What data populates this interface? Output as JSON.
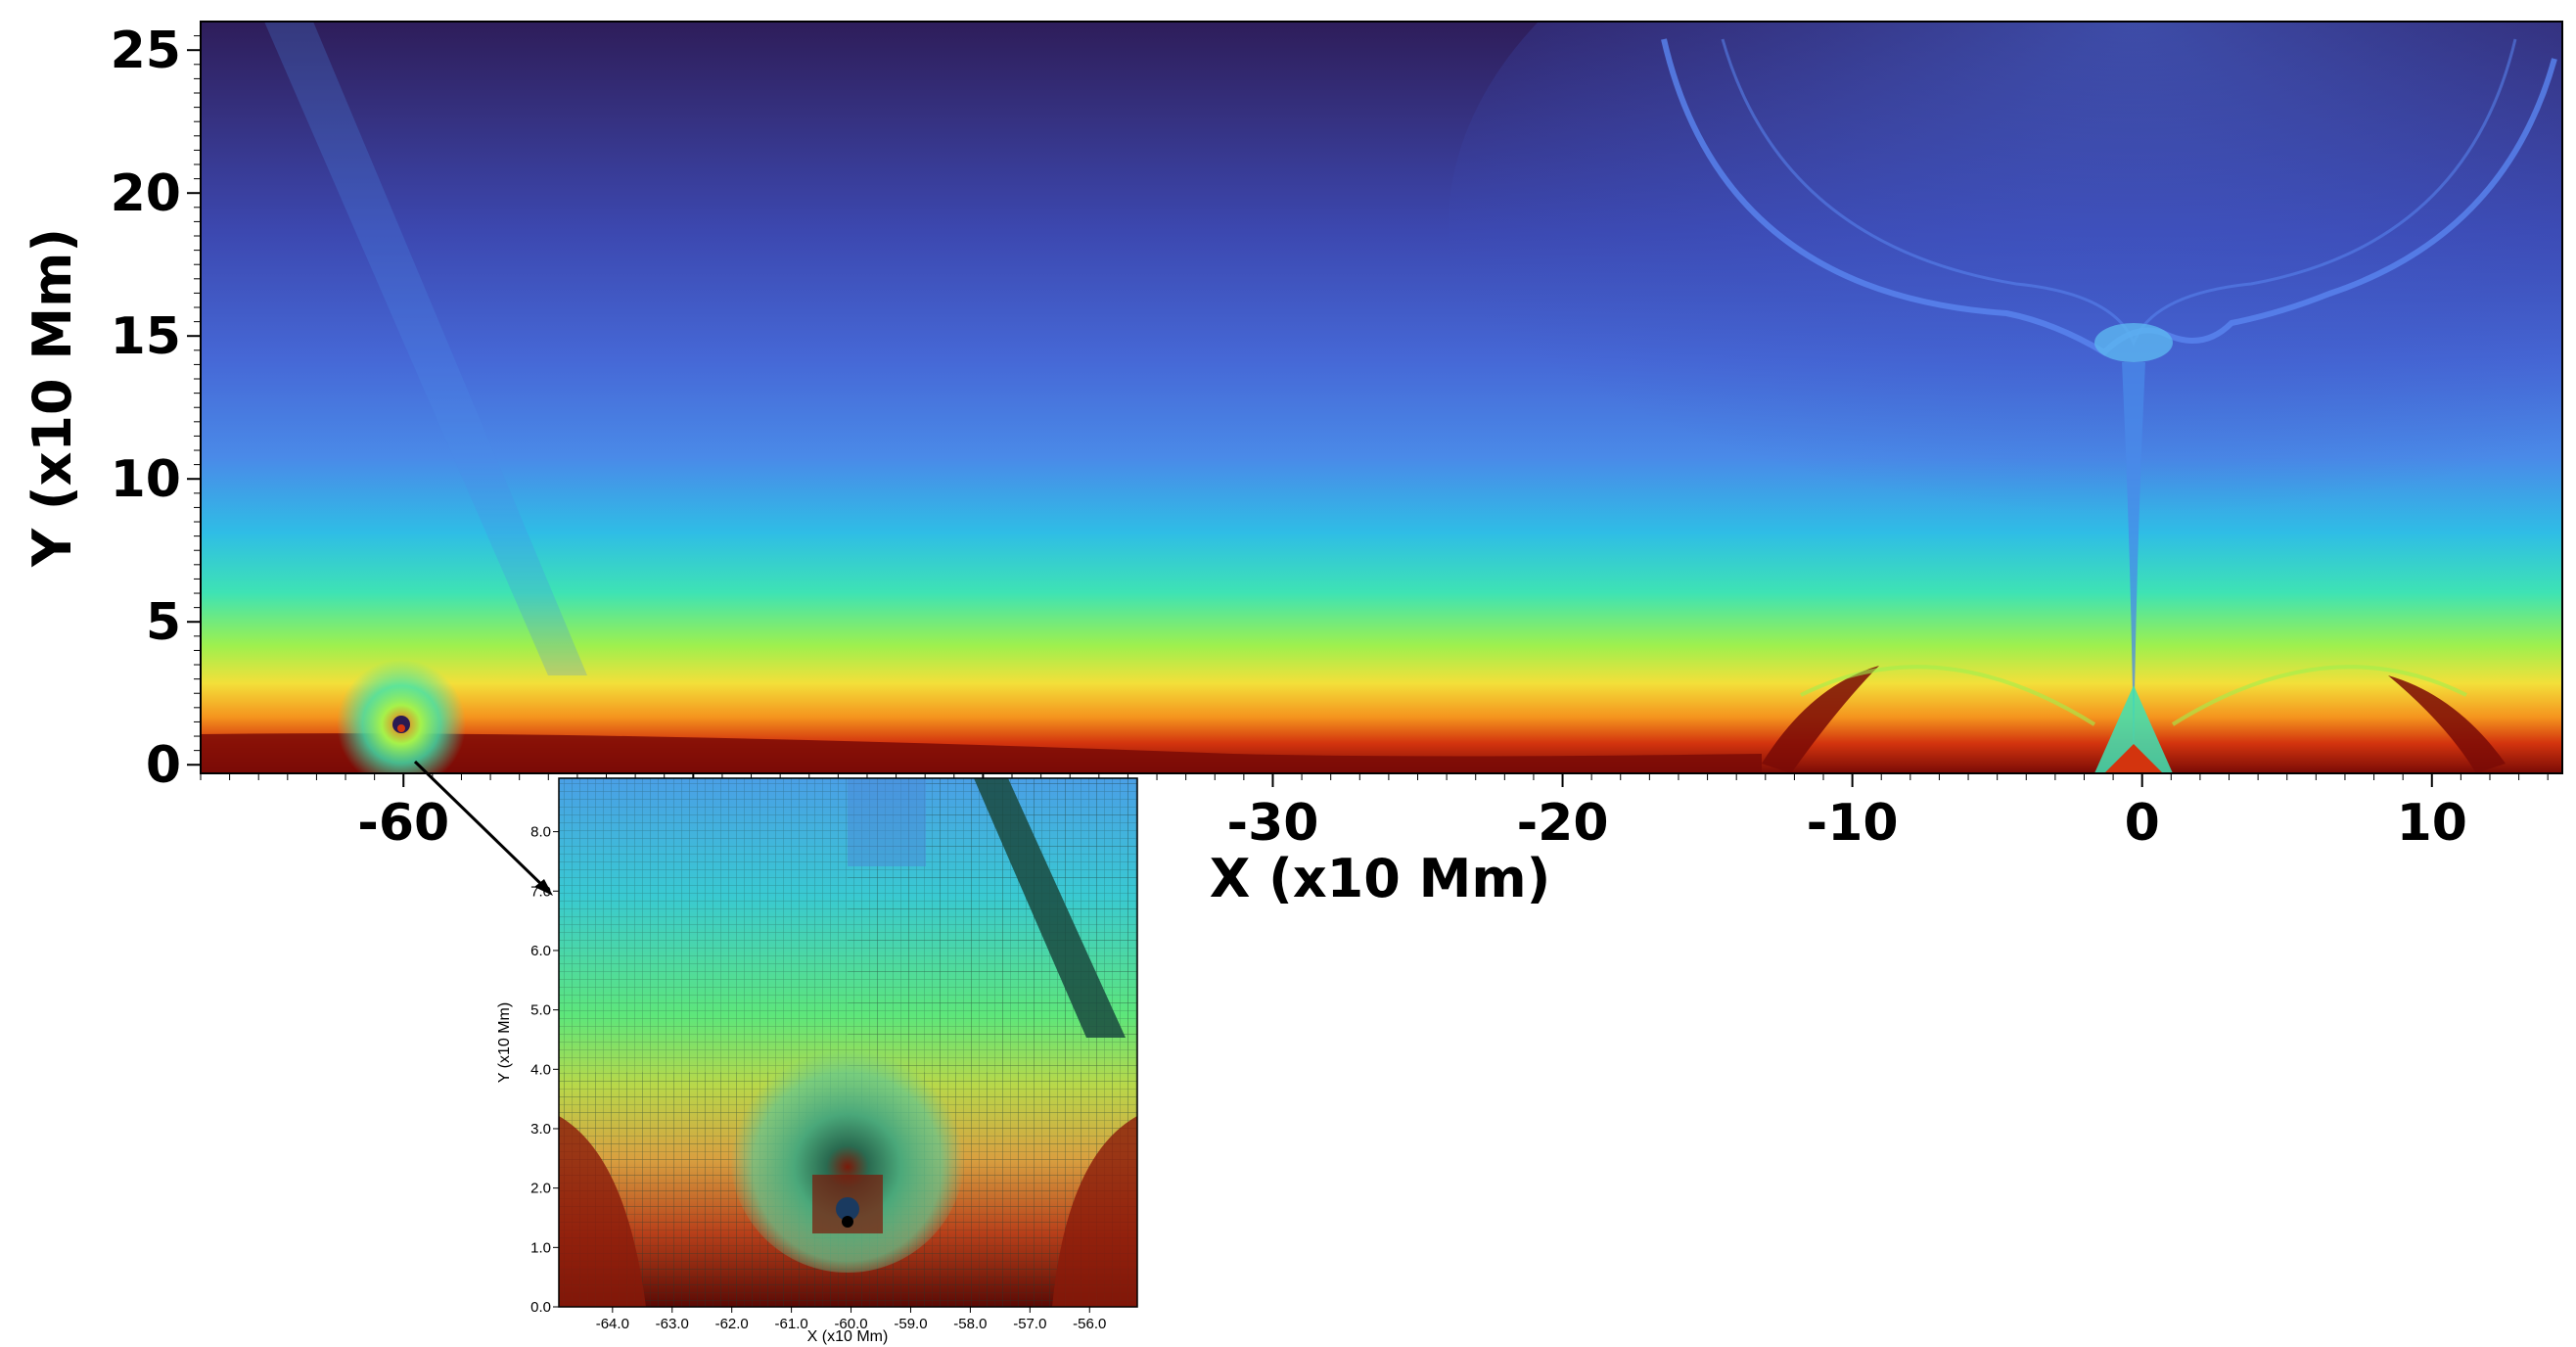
{
  "main_plot": {
    "xlabel": "X (x10 Mm)",
    "ylabel": "Y (x10 Mm)",
    "x_range": [
      -67,
      14.5
    ],
    "y_range": [
      -0.3,
      26
    ],
    "x_ticks": [
      {
        "value": -60,
        "label": "-60"
      },
      {
        "value": -30,
        "label": "-30"
      },
      {
        "value": -20,
        "label": "-20"
      },
      {
        "value": -10,
        "label": "-10"
      },
      {
        "value": 0,
        "label": "0"
      },
      {
        "value": 10,
        "label": "10"
      }
    ],
    "y_ticks": [
      {
        "value": 0,
        "label": "0"
      },
      {
        "value": 5,
        "label": "5"
      },
      {
        "value": 10,
        "label": "10"
      },
      {
        "value": 15,
        "label": "15"
      },
      {
        "value": 20,
        "label": "20"
      },
      {
        "value": 25,
        "label": "25"
      }
    ]
  },
  "inset_plot": {
    "xlabel": "X (x10 Mm)",
    "ylabel": "Y (x10 Mm)",
    "x_range": [
      -64.9,
      -55.2
    ],
    "y_range": [
      0,
      8.9
    ],
    "x_ticks": [
      {
        "value": -64,
        "label": "-64.0"
      },
      {
        "value": -63,
        "label": "-63.0"
      },
      {
        "value": -62,
        "label": "-62.0"
      },
      {
        "value": -61,
        "label": "-61.0"
      },
      {
        "value": -60,
        "label": "-60.0"
      },
      {
        "value": -59,
        "label": "-59.0"
      },
      {
        "value": -58,
        "label": "-58.0"
      },
      {
        "value": -57,
        "label": "-57.0"
      },
      {
        "value": -56,
        "label": "-56.0"
      }
    ],
    "y_ticks": [
      {
        "value": 0,
        "label": "0.0"
      },
      {
        "value": 1,
        "label": "1.0"
      },
      {
        "value": 2,
        "label": "2.0"
      },
      {
        "value": 3,
        "label": "3.0"
      },
      {
        "value": 4,
        "label": "4.0"
      },
      {
        "value": 5,
        "label": "5.0"
      },
      {
        "value": 6,
        "label": "6.0"
      },
      {
        "value": 7,
        "label": "7.0"
      },
      {
        "value": 8,
        "label": "8.0"
      }
    ]
  },
  "colormap": [
    "#2b1a52",
    "#3a3f9e",
    "#4a6fe0",
    "#2fb8e8",
    "#39e6b0",
    "#a6f24a",
    "#f7d23a",
    "#f26b1c",
    "#b31e0c",
    "#6a0a05"
  ]
}
